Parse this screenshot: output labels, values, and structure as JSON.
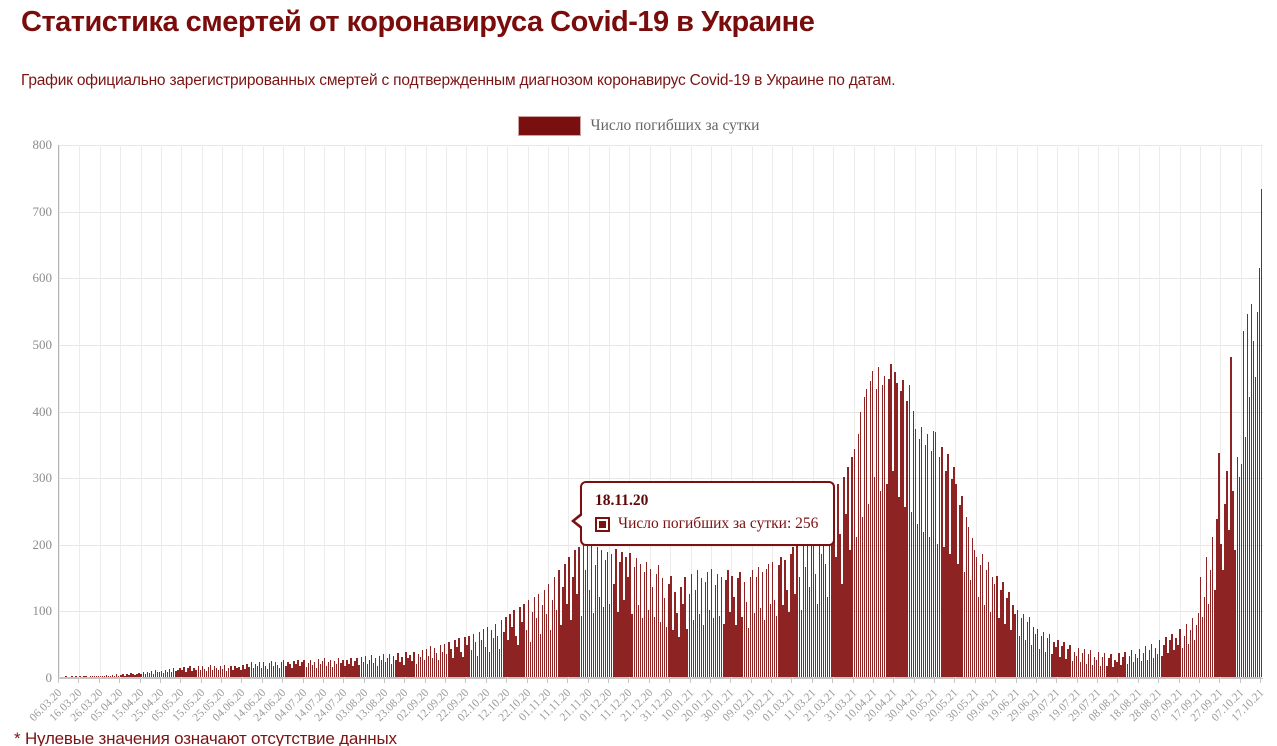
{
  "page": {
    "title": "Статистика смертей от коронавируса Covid-19 в Украине",
    "subtitle": "График официально зарегистрированных смертей с подтвержденным диагнозом коронавирус Covid-19 в Украине по датам.",
    "footnote": "* Нулевые значения означают отсутствие данных"
  },
  "legend": {
    "label": "Число погибших за сутки"
  },
  "tooltip": {
    "date": "18.11.20",
    "label": "Число погибших за сутки",
    "value": 256,
    "text": "Число погибших за сутки: 256"
  },
  "colors": {
    "title": "#7a0c0c",
    "bar": "#8e2323",
    "legend_swatch": "#7a0f0f",
    "tooltip_border": "#7a1010",
    "grid": "#e6e6e6",
    "axis_labels": "#9a9a9a"
  },
  "chart_data": {
    "type": "bar",
    "title": "Число погибших за сутки",
    "xlabel": "",
    "ylabel": "",
    "ylim": [
      0,
      800
    ],
    "y_ticks": [
      0,
      100,
      200,
      300,
      400,
      500,
      600,
      700,
      800
    ],
    "grid": true,
    "legend_position": "top",
    "x_start": "06.03.20",
    "x_end": "17.10.21",
    "x_tick_interval_days": 10,
    "x_tick_labels": [
      "06.03.20",
      "16.03.20",
      "26.03.20",
      "05.04.20",
      "15.04.20",
      "25.04.20",
      "05.05.20",
      "15.05.20",
      "25.05.20",
      "04.06.20",
      "14.06.20",
      "24.06.20",
      "04.07.20",
      "14.07.20",
      "24.07.20",
      "03.08.20",
      "13.08.20",
      "23.08.20",
      "02.09.20",
      "12.09.20",
      "22.09.20",
      "02.10.20",
      "12.10.20",
      "22.10.20",
      "01.11.20",
      "11.11.20",
      "21.11.20",
      "01.12.20",
      "11.12.20",
      "21.12.20",
      "31.12.20",
      "10.01.21",
      "20.01.21",
      "30.01.21",
      "09.02.21",
      "19.02.21",
      "01.03.21",
      "11.03.21",
      "21.03.21",
      "31.03.21",
      "10.04.21",
      "20.04.21",
      "30.04.21",
      "10.05.21",
      "20.05.21",
      "30.05.21",
      "09.06.21",
      "19.06.21",
      "29.06.21",
      "09.07.21",
      "19.07.21",
      "29.07.21",
      "08.08.21",
      "18.08.21",
      "28.08.21",
      "07.09.21",
      "17.09.21",
      "27.09.21",
      "07.10.21",
      "17.10.21"
    ],
    "highlighted_point": {
      "date": "18.11.20",
      "value": 256
    },
    "series": [
      {
        "name": "Число погибших за сутки",
        "values": [
          0,
          0,
          0,
          1,
          0,
          0,
          1,
          0,
          1,
          0,
          1,
          0,
          2,
          1,
          0,
          2,
          1,
          1,
          2,
          1,
          1,
          2,
          1,
          3,
          2,
          1,
          3,
          2,
          4,
          2,
          3,
          4,
          2,
          5,
          3,
          6,
          4,
          3,
          5,
          6,
          5,
          7,
          4,
          8,
          6,
          9,
          5,
          10,
          7,
          8,
          9,
          6,
          11,
          8,
          12,
          7,
          13,
          9,
          10,
          14,
          10,
          15,
          8,
          13,
          17,
          9,
          14,
          11,
          16,
          10,
          17,
          12,
          9,
          15,
          18,
          11,
          16,
          13,
          10,
          17,
          12,
          18,
          9,
          14,
          16,
          11,
          17,
          13,
          15,
          10,
          18,
          12,
          20,
          15,
          23,
          13,
          19,
          16,
          22,
          14,
          23,
          17,
          12,
          21,
          24,
          16,
          22,
          18,
          13,
          23,
          26,
          17,
          23,
          19,
          14,
          24,
          20,
          26,
          16,
          22,
          25,
          15,
          21,
          26,
          18,
          23,
          14,
          27,
          20,
          24,
          28,
          17,
          22,
          26,
          15,
          24,
          19,
          28,
          21,
          25,
          16,
          26,
          20,
          29,
          17,
          24,
          28,
          18,
          30,
          22,
          31,
          19,
          26,
          33,
          21,
          28,
          17,
          32,
          25,
          34,
          22,
          29,
          35,
          19,
          31,
          26,
          36,
          23,
          30,
          18,
          37,
          28,
          33,
          24,
          38,
          20,
          35,
          30,
          40,
          26,
          42,
          32,
          46,
          28,
          44,
          36,
          25,
          48,
          38,
          50,
          34,
          52,
          42,
          28,
          55,
          45,
          58,
          38,
          30,
          60,
          48,
          62,
          40,
          65,
          52,
          32,
          68,
          55,
          72,
          45,
          75,
          38,
          70,
          58,
          80,
          62,
          42,
          85,
          68,
          90,
          55,
          95,
          75,
          100,
          62,
          48,
          105,
          82,
          110,
          70,
          115,
          52,
          98,
          120,
          88,
          125,
          65,
          108,
          130,
          95,
          140,
          70,
          115,
          150,
          100,
          160,
          78,
          135,
          170,
          110,
          180,
          85,
          150,
          190,
          125,
          195,
          92,
          256,
          160,
          200,
          130,
          198,
          96,
          168,
          195,
          120,
          190,
          105,
          175,
          188,
          110,
          185,
          140,
          192,
          98,
          172,
          188,
          115,
          180,
          150,
          186,
          94,
          165,
          178,
          108,
          170,
          88,
          158,
          172,
          100,
          162,
          135,
          90,
          155,
          168,
          82,
          148,
          118,
          75,
          140,
          152,
          70,
          128,
          96,
          60,
          135,
          110,
          150,
          72,
          125,
          155,
          85,
          130,
          160,
          95,
          148,
          78,
          142,
          158,
          100,
          162,
          88,
          138,
          155,
          92,
          150,
          80,
          145,
          160,
          98,
          152,
          120,
          78,
          148,
          158,
          90,
          142,
          112,
          74,
          150,
          160,
          96,
          150,
          165,
          104,
          158,
          86,
          162,
          170,
          110,
          172,
          115,
          92,
          168,
          180,
          108,
          175,
          130,
          98,
          185,
          195,
          125,
          205,
          150,
          100,
          210,
          165,
          220,
          135,
          215,
          235,
          155,
          110,
          240,
          185,
          250,
          170,
          120,
          255,
          200,
          265,
          180,
          290,
          215,
          140,
          300,
          245,
          315,
          190,
          330,
          342,
          210,
          365,
          398,
          240,
          420,
          433,
          260,
          445,
          460,
          300,
          433,
          465,
          280,
          438,
          452,
          290,
          448,
          470,
          310,
          458,
          442,
          270,
          430,
          446,
          255,
          415,
          438,
          248,
          400,
          372,
          230,
          358,
          376,
          218,
          348,
          365,
          210,
          340,
          370,
          368,
          200,
          330,
          345,
          195,
          310,
          335,
          185,
          298,
          315,
          290,
          170,
          258,
          272,
          158,
          240,
          225,
          145,
          208,
          190,
          180,
          120,
          168,
          185,
          108,
          160,
          172,
          98,
          150,
          140,
          152,
          88,
          130,
          142,
          80,
          118,
          128,
          70,
          108,
          95,
          100,
          62,
          88,
          95,
          55,
          82,
          90,
          48,
          75,
          65,
          72,
          42,
          62,
          68,
          38,
          58,
          64,
          34,
          52,
          45,
          55,
          30,
          46,
          52,
          27,
          42,
          48,
          24,
          38,
          32,
          44,
          22,
          36,
          42,
          20,
          34,
          40,
          18,
          30,
          26,
          38,
          17,
          30,
          36,
          16,
          28,
          34,
          15,
          26,
          22,
          36,
          18,
          30,
          38,
          20,
          32,
          40,
          22,
          34,
          28,
          42,
          24,
          36,
          46,
          26,
          40,
          50,
          28,
          44,
          35,
          55,
          32,
          48,
          60,
          36,
          55,
          65,
          40,
          58,
          48,
          72,
          44,
          62,
          80,
          50,
          70,
          88,
          55,
          78,
          96,
          150,
          90,
          120,
          180,
          110,
          160,
          210,
          130,
          237,
          337,
          200,
          160,
          260,
          310,
          220,
          480,
          280,
          190,
          330,
          300,
          320,
          520,
          360,
          545,
          420,
          560,
          504,
          450,
          548,
          614,
          733
        ]
      }
    ]
  }
}
